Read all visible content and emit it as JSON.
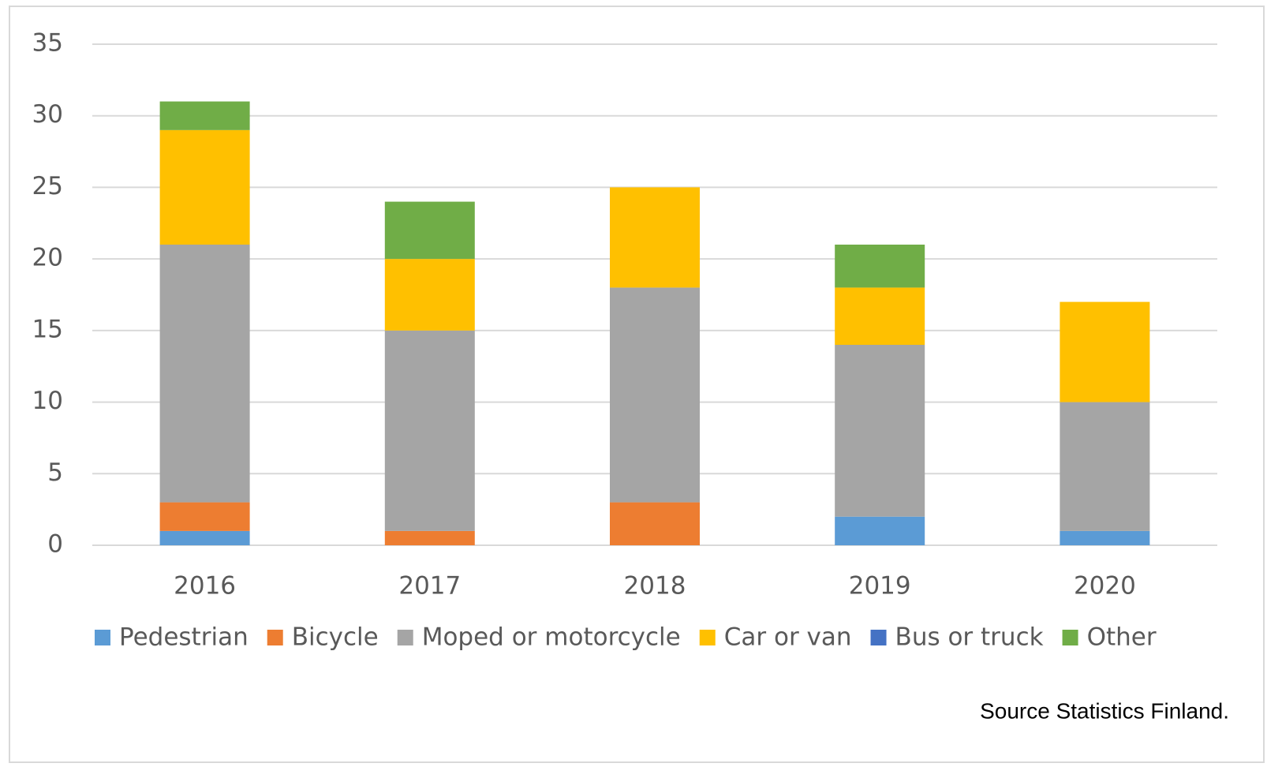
{
  "chart_data": {
    "type": "stacked_bar",
    "categories": [
      "2016",
      "2017",
      "2018",
      "2019",
      "2020"
    ],
    "series": [
      {
        "name": "Pedestrian",
        "color": "#5b9bd5",
        "values": [
          1,
          0,
          0,
          2,
          1
        ]
      },
      {
        "name": "Bicycle",
        "color": "#ed7d31",
        "values": [
          2,
          1,
          3,
          0,
          0
        ]
      },
      {
        "name": "Moped or motorcycle",
        "color": "#a5a5a5",
        "values": [
          18,
          14,
          15,
          12,
          9
        ]
      },
      {
        "name": "Car or van",
        "color": "#ffc000",
        "values": [
          8,
          5,
          7,
          4,
          7
        ]
      },
      {
        "name": "Bus or truck",
        "color": "#4472c4",
        "values": [
          0,
          0,
          0,
          0,
          0
        ]
      },
      {
        "name": "Other",
        "color": "#70ad47",
        "values": [
          2,
          4,
          0,
          3,
          0
        ]
      }
    ],
    "ylim": [
      0,
      35
    ],
    "yticks": [
      0,
      5,
      10,
      15,
      20,
      25,
      30,
      35
    ],
    "grid": true,
    "legend": "bottom",
    "source": "Source Statistics Finland."
  }
}
